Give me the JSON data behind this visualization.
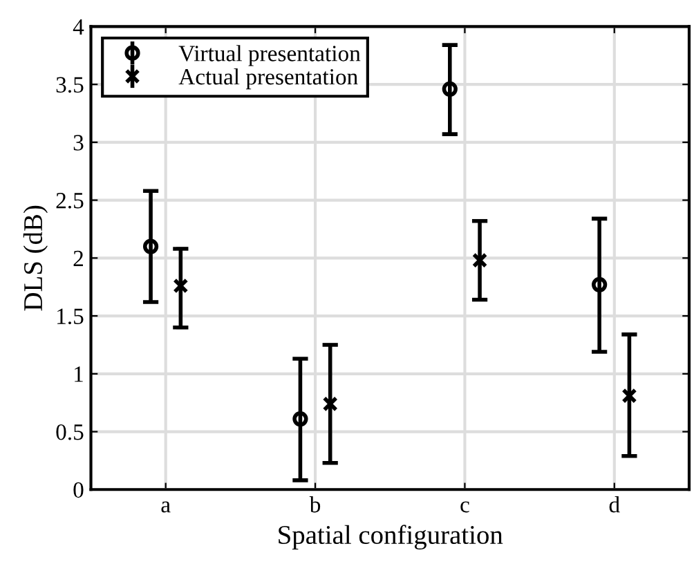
{
  "chart_data": {
    "type": "scatter",
    "xlabel": "Spatial configuration",
    "ylabel": "DLS (dB)",
    "categories": [
      "a",
      "b",
      "c",
      "d"
    ],
    "series": [
      {
        "name": "Virtual presentation",
        "color": "#000000",
        "marker": "circle",
        "values": [
          2.1,
          0.61,
          3.46,
          1.77
        ],
        "errors": [
          [
            1.62,
            2.58
          ],
          [
            0.08,
            1.13
          ],
          [
            3.07,
            3.84
          ],
          [
            1.19,
            2.34
          ]
        ]
      },
      {
        "name": "Actual presentation",
        "color": "#000000",
        "marker": "cross",
        "values": [
          1.76,
          0.74,
          1.98,
          0.81
        ],
        "errors": [
          [
            1.4,
            2.08
          ],
          [
            0.23,
            1.25
          ],
          [
            1.64,
            2.32
          ],
          [
            0.29,
            1.34
          ]
        ]
      }
    ],
    "ylim": [
      0,
      4
    ],
    "yticks": [
      0,
      0.5,
      1,
      1.5,
      2,
      2.5,
      3,
      3.5,
      4
    ],
    "grid": true,
    "legend": "top left"
  }
}
